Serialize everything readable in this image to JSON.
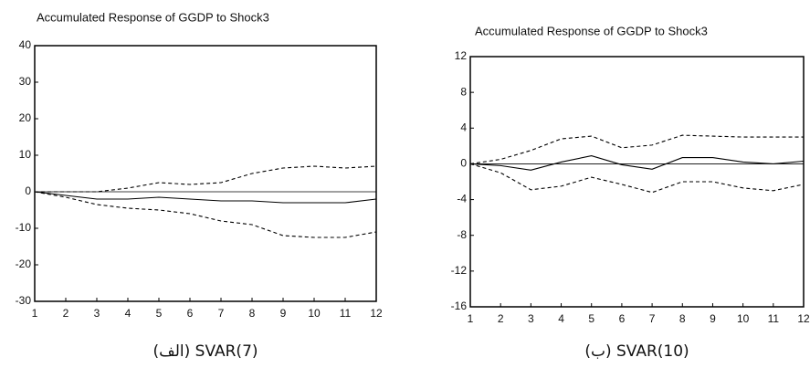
{
  "chart_data": [
    {
      "type": "line",
      "title": "Accumulated Response of GGDP to Shock3",
      "caption": "(الف) SVAR(7)",
      "x": [
        1,
        2,
        3,
        4,
        5,
        6,
        7,
        8,
        9,
        10,
        11,
        12
      ],
      "xlim": [
        1,
        12
      ],
      "xticks": [
        1,
        2,
        3,
        4,
        5,
        6,
        7,
        8,
        9,
        10,
        11,
        12
      ],
      "ylim": [
        -30,
        40
      ],
      "yticks": [
        -30,
        -20,
        -10,
        0,
        10,
        20,
        30,
        40
      ],
      "zero_line": true,
      "series": [
        {
          "color": "#000000",
          "style": "solid",
          "values": [
            0,
            -1,
            -2,
            -2,
            -1.5,
            -2,
            -2.5,
            -2.5,
            -3,
            -3,
            -3,
            -2
          ]
        },
        {
          "color": "#000000",
          "style": "dashed",
          "values": [
            0,
            0,
            0,
            1,
            2.5,
            2,
            2.5,
            5,
            6.5,
            7,
            6.5,
            7
          ]
        },
        {
          "color": "#000000",
          "style": "dashed",
          "values": [
            0,
            -1.5,
            -3.5,
            -4.5,
            -5,
            -6,
            -8,
            -9,
            -12,
            -12.5,
            -12.5,
            -11
          ]
        }
      ]
    },
    {
      "type": "line",
      "title": "Accumulated Response of GGDP to Shock3",
      "caption": "(ب) SVAR(10)",
      "x": [
        1,
        2,
        3,
        4,
        5,
        6,
        7,
        8,
        9,
        10,
        11,
        12
      ],
      "xlim": [
        1,
        12
      ],
      "xticks": [
        1,
        2,
        3,
        4,
        5,
        6,
        7,
        8,
        9,
        10,
        11,
        12
      ],
      "ylim": [
        -16,
        12
      ],
      "yticks": [
        -16,
        -12,
        -8,
        -4,
        0,
        4,
        8,
        12
      ],
      "zero_line": true,
      "series": [
        {
          "color": "#000000",
          "style": "solid",
          "values": [
            0,
            -0.2,
            -0.7,
            0.2,
            0.9,
            -0.1,
            -0.6,
            0.7,
            0.7,
            0.2,
            0,
            0.3
          ]
        },
        {
          "color": "#000000",
          "style": "dashed",
          "values": [
            0,
            0.5,
            1.5,
            2.8,
            3.1,
            1.8,
            2.1,
            3.2,
            3.1,
            3,
            3,
            3
          ]
        },
        {
          "color": "#000000",
          "style": "dashed",
          "values": [
            0,
            -1,
            -2.9,
            -2.5,
            -1.5,
            -2.3,
            -3.2,
            -2,
            -2,
            -2.7,
            -3,
            -2.3
          ]
        }
      ]
    }
  ]
}
